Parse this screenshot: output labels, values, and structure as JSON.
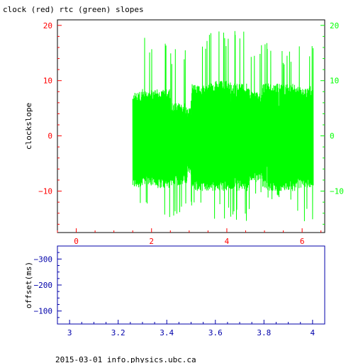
{
  "page": {
    "title": "clock (red) rtc (green) slopes",
    "footer": "2015-03-01 info.physics.ubc.ca"
  },
  "colors": {
    "axis": "#000000",
    "red": "#ff0000",
    "green": "#00ff00",
    "blue": "#0000aa"
  },
  "chart_data": [
    {
      "type": "line",
      "title": "clock (red) rtc (green) slopes",
      "xlabel": "",
      "ylabel": "clockslope",
      "xlim": [
        -0.5,
        6.6
      ],
      "ylim": [
        -17.5,
        21.0
      ],
      "x_ticks": [
        0,
        2,
        4,
        6
      ],
      "x_tick_labels": [
        "0",
        "2",
        "4",
        "6"
      ],
      "y_ticks": [
        -10,
        0,
        10,
        20
      ],
      "y_tick_labels": [
        "−10",
        "0",
        "10",
        "20"
      ],
      "right_y_ticks": [
        -10,
        0,
        10,
        20
      ],
      "right_y_tick_labels": [
        "−10",
        "0",
        "10",
        "20"
      ],
      "series": [
        {
          "name": "rtc",
          "color": "#00ff00",
          "x_start": 1.5,
          "x_end": 6.3,
          "segments": [
            {
              "x0": 1.5,
              "x1": 1.75,
              "band_low": -9.5,
              "band_high": 8.0,
              "spike_low": -13.0,
              "spike_high": 19.0
            },
            {
              "x0": 1.75,
              "x1": 2.1,
              "band_low": -9.0,
              "band_high": 8.5,
              "spike_low": -13.0,
              "spike_high": 18.0
            },
            {
              "x0": 2.1,
              "x1": 2.5,
              "band_low": -9.5,
              "band_high": 8.5,
              "spike_low": -15.0,
              "spike_high": 18.0
            },
            {
              "x0": 2.5,
              "x1": 2.95,
              "band_low": -9.0,
              "band_high": 6.0,
              "spike_low": -14.5,
              "spike_high": 16.0
            },
            {
              "x0": 2.95,
              "x1": 3.05,
              "band_low": -7.0,
              "band_high": 5.0,
              "spike_low": -9.0,
              "spike_high": 6.0
            },
            {
              "x0": 3.05,
              "x1": 3.5,
              "band_low": -10.0,
              "band_high": 9.5,
              "spike_low": -13.0,
              "spike_high": 18.5
            },
            {
              "x0": 3.5,
              "x1": 4.1,
              "band_low": -10.0,
              "band_high": 10.0,
              "spike_low": -15.0,
              "spike_high": 19.0
            },
            {
              "x0": 4.1,
              "x1": 4.6,
              "band_low": -10.0,
              "band_high": 9.5,
              "spike_low": -16.0,
              "spike_high": 19.5
            },
            {
              "x0": 4.6,
              "x1": 4.95,
              "band_low": -8.5,
              "band_high": 8.0,
              "spike_low": -12.0,
              "spike_high": 17.0
            },
            {
              "x0": 4.95,
              "x1": 5.45,
              "band_low": -10.0,
              "band_high": 9.5,
              "spike_low": -13.0,
              "spike_high": 17.0
            },
            {
              "x0": 5.45,
              "x1": 5.85,
              "band_low": -10.0,
              "band_high": 9.5,
              "spike_low": -14.0,
              "spike_high": 15.5
            },
            {
              "x0": 5.85,
              "x1": 6.3,
              "band_low": -9.5,
              "band_high": 9.0,
              "spike_low": -15.5,
              "spike_high": 17.0
            }
          ]
        }
      ]
    },
    {
      "type": "line",
      "title": "",
      "xlabel": "",
      "ylabel": "offset(ms)",
      "xlim": [
        2.95,
        4.05
      ],
      "ylim": [
        -50,
        -350
      ],
      "x_ticks": [
        3,
        3.2,
        3.4,
        3.6,
        3.8,
        4
      ],
      "x_tick_labels": [
        "3",
        "3.2",
        "3.4",
        "3.6",
        "3.8",
        "4"
      ],
      "y_ticks": [
        -300,
        -200,
        -100
      ],
      "y_tick_labels": [
        "−300",
        "−200",
        "−100"
      ],
      "series": []
    }
  ]
}
